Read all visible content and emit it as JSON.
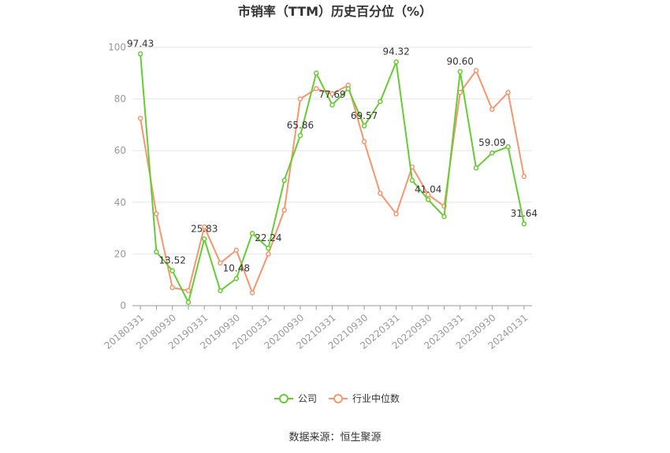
{
  "chart_data": {
    "type": "line",
    "title": "市销率（TTM）历史百分位（%）",
    "source": "数据来源：恒生聚源",
    "ylim": [
      0,
      100
    ],
    "yticks": [
      "0",
      "20",
      "40",
      "60",
      "80",
      "100"
    ],
    "grid": true,
    "legend_position": "bottom-center",
    "x": [
      "20180331",
      "20180630",
      "20180930",
      "20181231",
      "20190331",
      "20190630",
      "20190930",
      "20191231",
      "20200331",
      "20200630",
      "20200930",
      "20201231",
      "20210331",
      "20210630",
      "20210930",
      "20211231",
      "20220331",
      "20220630",
      "20220930",
      "20221231",
      "20230331",
      "20230630",
      "20230930",
      "20231231",
      "20240131"
    ],
    "x_tick_labels": [
      "20180331",
      "20180930",
      "20190331",
      "20190930",
      "20200331",
      "20200930",
      "20210331",
      "20210930",
      "20220331",
      "20220930",
      "20230331",
      "20230930",
      "20240131"
    ],
    "series": [
      {
        "name": "公司",
        "color": "#66cc33",
        "values": [
          97.43,
          20.8,
          13.52,
          1.3,
          25.83,
          5.8,
          10.48,
          28.0,
          22.24,
          48.5,
          65.86,
          90.0,
          77.69,
          84.0,
          69.57,
          79.0,
          94.32,
          48.5,
          41.04,
          34.5,
          90.6,
          53.3,
          59.09,
          61.5,
          31.64
        ],
        "labels": {
          "0": "97.43",
          "2": "13.52",
          "4": "25.83",
          "6": "10.48",
          "8": "22.24",
          "10": "65.86",
          "12": "77.69",
          "14": "69.57",
          "16": "94.32",
          "18": "41.04",
          "20": "90.60",
          "22": "59.09",
          "24": "31.64"
        }
      },
      {
        "name": "行业中位数",
        "color": "#f7956d",
        "values": [
          72.5,
          35.5,
          7.0,
          5.8,
          30.5,
          16.5,
          21.5,
          5.0,
          20.0,
          37.0,
          80.0,
          84.0,
          82.0,
          85.3,
          63.5,
          43.5,
          35.5,
          53.7,
          43.0,
          38.5,
          82.5,
          91.0,
          76.0,
          82.5,
          50.0
        ]
      }
    ]
  }
}
